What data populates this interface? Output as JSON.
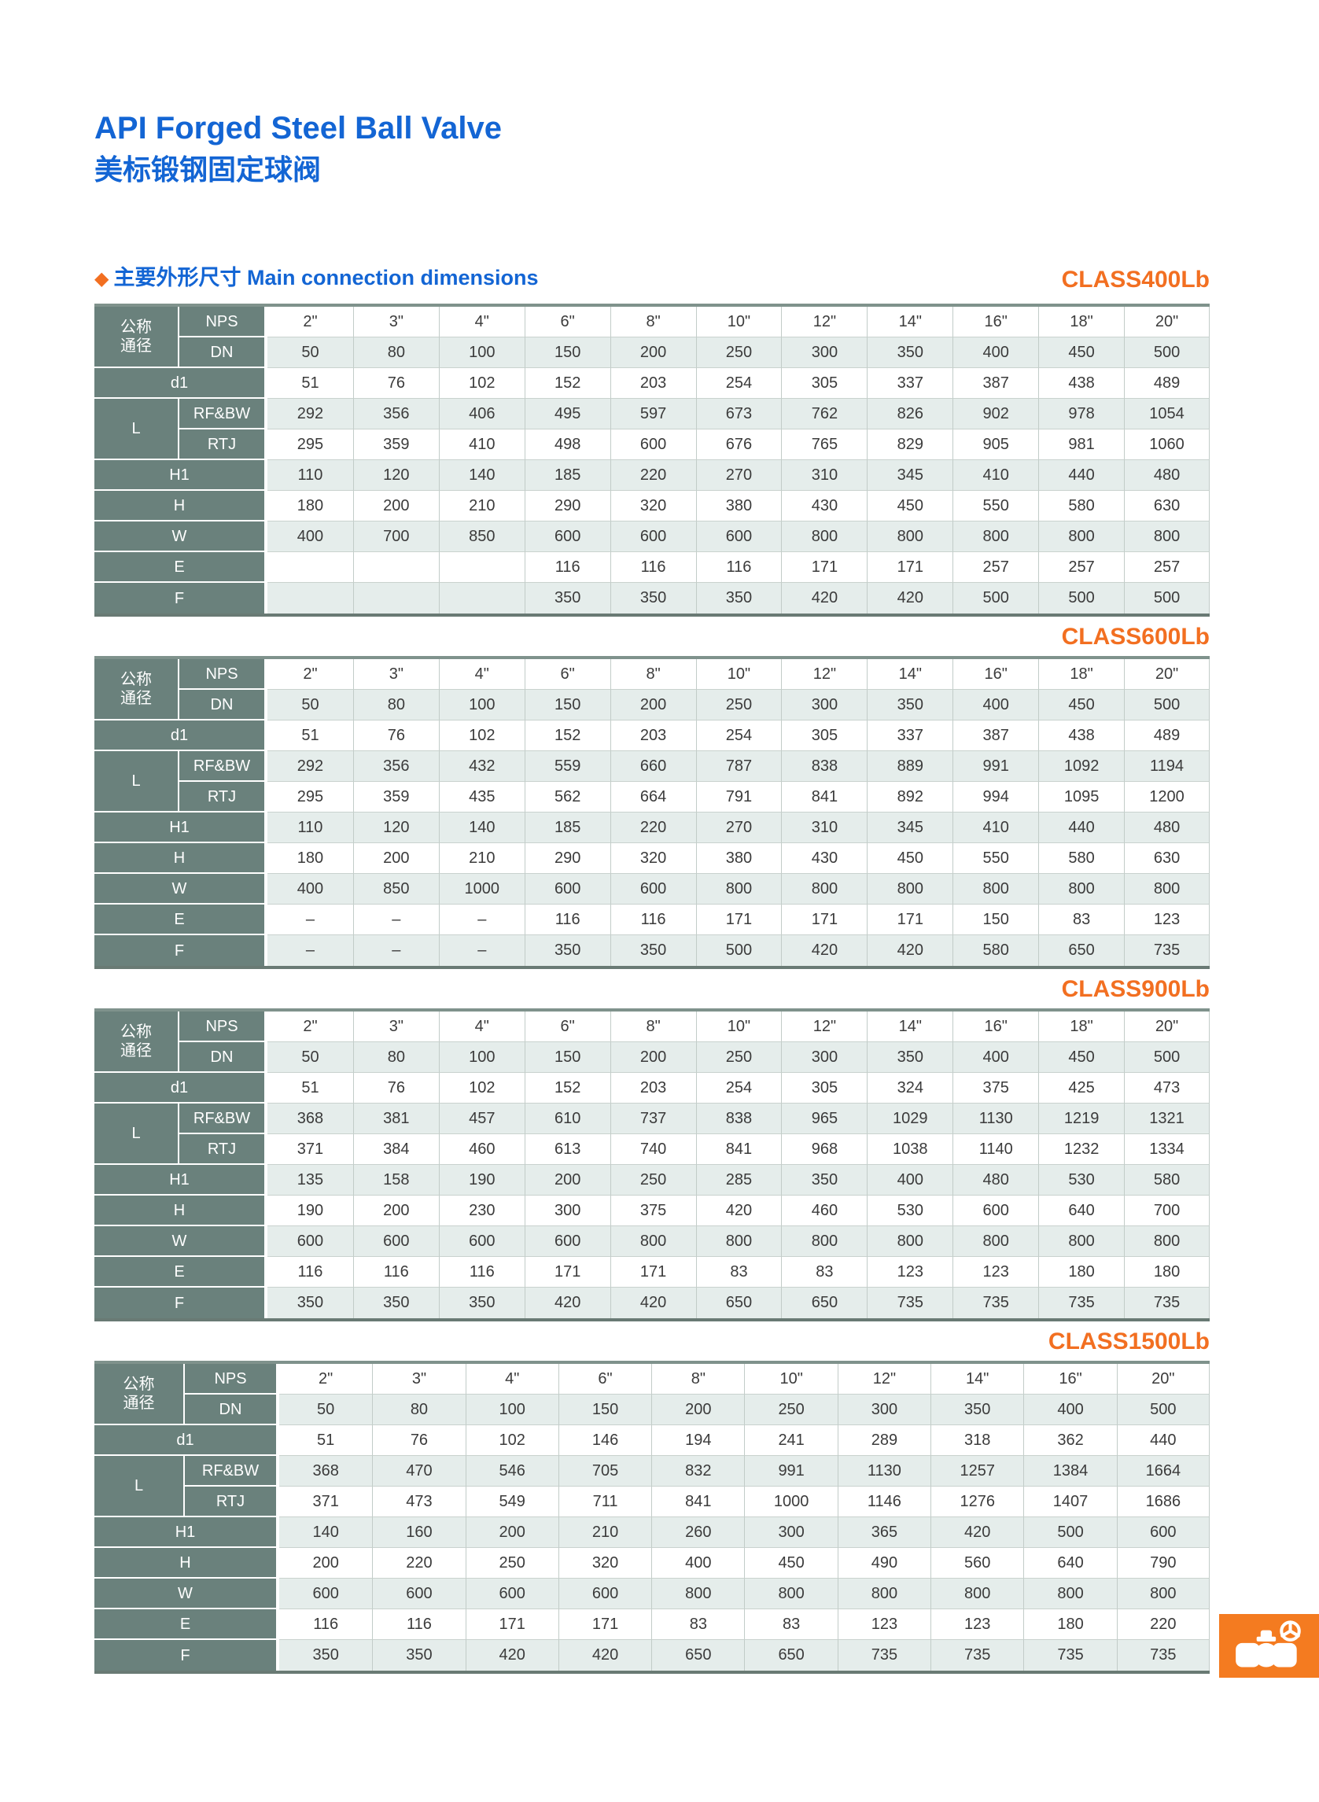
{
  "header": {
    "title_en": "API Forged Steel Ball Valve",
    "title_zh": "美标锻钢固定球阀"
  },
  "section": {
    "marker": "◆",
    "title": "主要外形尺寸 Main connection dimensions"
  },
  "row_labels": {
    "nominal_lines": [
      "公称",
      "通径"
    ],
    "nps": "NPS",
    "dn": "DN",
    "d1": "d1",
    "l": "L",
    "rfbw": "RF&BW",
    "rtj": "RTJ",
    "h1": "H1",
    "h": "H",
    "w": "W",
    "e": "E",
    "f": "F"
  },
  "tables": [
    {
      "class_label": "CLASS400Lb",
      "nps": [
        "2\"",
        "3\"",
        "4\"",
        "6\"",
        "8\"",
        "10\"",
        "12\"",
        "14\"",
        "16\"",
        "18\"",
        "20\""
      ],
      "dn": [
        "50",
        "80",
        "100",
        "150",
        "200",
        "250",
        "300",
        "350",
        "400",
        "450",
        "500"
      ],
      "d1": [
        "51",
        "76",
        "102",
        "152",
        "203",
        "254",
        "305",
        "337",
        "387",
        "438",
        "489"
      ],
      "l_rfbw": [
        "292",
        "356",
        "406",
        "495",
        "597",
        "673",
        "762",
        "826",
        "902",
        "978",
        "1054"
      ],
      "l_rtj": [
        "295",
        "359",
        "410",
        "498",
        "600",
        "676",
        "765",
        "829",
        "905",
        "981",
        "1060"
      ],
      "h1": [
        "110",
        "120",
        "140",
        "185",
        "220",
        "270",
        "310",
        "345",
        "410",
        "440",
        "480"
      ],
      "h": [
        "180",
        "200",
        "210",
        "290",
        "320",
        "380",
        "430",
        "450",
        "550",
        "580",
        "630"
      ],
      "w": [
        "400",
        "700",
        "850",
        "600",
        "600",
        "600",
        "800",
        "800",
        "800",
        "800",
        "800"
      ],
      "e": [
        "",
        "",
        "",
        "116",
        "116",
        "116",
        "171",
        "171",
        "257",
        "257",
        "257"
      ],
      "f": [
        "",
        "",
        "",
        "350",
        "350",
        "350",
        "420",
        "420",
        "500",
        "500",
        "500"
      ]
    },
    {
      "class_label": "CLASS600Lb",
      "nps": [
        "2\"",
        "3\"",
        "4\"",
        "6\"",
        "8\"",
        "10\"",
        "12\"",
        "14\"",
        "16\"",
        "18\"",
        "20\""
      ],
      "dn": [
        "50",
        "80",
        "100",
        "150",
        "200",
        "250",
        "300",
        "350",
        "400",
        "450",
        "500"
      ],
      "d1": [
        "51",
        "76",
        "102",
        "152",
        "203",
        "254",
        "305",
        "337",
        "387",
        "438",
        "489"
      ],
      "l_rfbw": [
        "292",
        "356",
        "432",
        "559",
        "660",
        "787",
        "838",
        "889",
        "991",
        "1092",
        "1194"
      ],
      "l_rtj": [
        "295",
        "359",
        "435",
        "562",
        "664",
        "791",
        "841",
        "892",
        "994",
        "1095",
        "1200"
      ],
      "h1": [
        "110",
        "120",
        "140",
        "185",
        "220",
        "270",
        "310",
        "345",
        "410",
        "440",
        "480"
      ],
      "h": [
        "180",
        "200",
        "210",
        "290",
        "320",
        "380",
        "430",
        "450",
        "550",
        "580",
        "630"
      ],
      "w": [
        "400",
        "850",
        "1000",
        "600",
        "600",
        "800",
        "800",
        "800",
        "800",
        "800",
        "800"
      ],
      "e": [
        "–",
        "–",
        "–",
        "116",
        "116",
        "171",
        "171",
        "171",
        "150",
        "83",
        "123"
      ],
      "f": [
        "–",
        "–",
        "–",
        "350",
        "350",
        "500",
        "420",
        "420",
        "580",
        "650",
        "735"
      ]
    },
    {
      "class_label": "CLASS900Lb",
      "nps": [
        "2\"",
        "3\"",
        "4\"",
        "6\"",
        "8\"",
        "10\"",
        "12\"",
        "14\"",
        "16\"",
        "18\"",
        "20\""
      ],
      "dn": [
        "50",
        "80",
        "100",
        "150",
        "200",
        "250",
        "300",
        "350",
        "400",
        "450",
        "500"
      ],
      "d1": [
        "51",
        "76",
        "102",
        "152",
        "203",
        "254",
        "305",
        "324",
        "375",
        "425",
        "473"
      ],
      "l_rfbw": [
        "368",
        "381",
        "457",
        "610",
        "737",
        "838",
        "965",
        "1029",
        "1130",
        "1219",
        "1321"
      ],
      "l_rtj": [
        "371",
        "384",
        "460",
        "613",
        "740",
        "841",
        "968",
        "1038",
        "1140",
        "1232",
        "1334"
      ],
      "h1": [
        "135",
        "158",
        "190",
        "200",
        "250",
        "285",
        "350",
        "400",
        "480",
        "530",
        "580"
      ],
      "h": [
        "190",
        "200",
        "230",
        "300",
        "375",
        "420",
        "460",
        "530",
        "600",
        "640",
        "700"
      ],
      "w": [
        "600",
        "600",
        "600",
        "600",
        "800",
        "800",
        "800",
        "800",
        "800",
        "800",
        "800"
      ],
      "e": [
        "116",
        "116",
        "116",
        "171",
        "171",
        "83",
        "83",
        "123",
        "123",
        "180",
        "180"
      ],
      "f": [
        "350",
        "350",
        "350",
        "420",
        "420",
        "650",
        "650",
        "735",
        "735",
        "735",
        "735"
      ]
    },
    {
      "class_label": "CLASS1500Lb",
      "nps": [
        "2\"",
        "3\"",
        "4\"",
        "6\"",
        "8\"",
        "10\"",
        "12\"",
        "14\"",
        "16\"",
        "20\""
      ],
      "dn": [
        "50",
        "80",
        "100",
        "150",
        "200",
        "250",
        "300",
        "350",
        "400",
        "500"
      ],
      "d1": [
        "51",
        "76",
        "102",
        "146",
        "194",
        "241",
        "289",
        "318",
        "362",
        "440"
      ],
      "l_rfbw": [
        "368",
        "470",
        "546",
        "705",
        "832",
        "991",
        "1130",
        "1257",
        "1384",
        "1664"
      ],
      "l_rtj": [
        "371",
        "473",
        "549",
        "711",
        "841",
        "1000",
        "1146",
        "1276",
        "1407",
        "1686"
      ],
      "h1": [
        "140",
        "160",
        "200",
        "210",
        "260",
        "300",
        "365",
        "420",
        "500",
        "600"
      ],
      "h": [
        "200",
        "220",
        "250",
        "320",
        "400",
        "450",
        "490",
        "560",
        "640",
        "790"
      ],
      "w": [
        "600",
        "600",
        "600",
        "600",
        "800",
        "800",
        "800",
        "800",
        "800",
        "800"
      ],
      "e": [
        "116",
        "116",
        "171",
        "171",
        "83",
        "83",
        "123",
        "123",
        "180",
        "220"
      ],
      "f": [
        "350",
        "350",
        "420",
        "420",
        "650",
        "650",
        "735",
        "735",
        "735",
        "735"
      ]
    }
  ],
  "badge": {
    "icon": "ball-valve-icon",
    "color": "#f47b20"
  },
  "colors": {
    "accent_blue": "#1365d4",
    "accent_orange": "#f26f21",
    "header_cell": "#6a817c",
    "tint_row": "#e5edeb",
    "table_top_bar": "#7f928c",
    "table_bottom_bar": "#697a74"
  }
}
